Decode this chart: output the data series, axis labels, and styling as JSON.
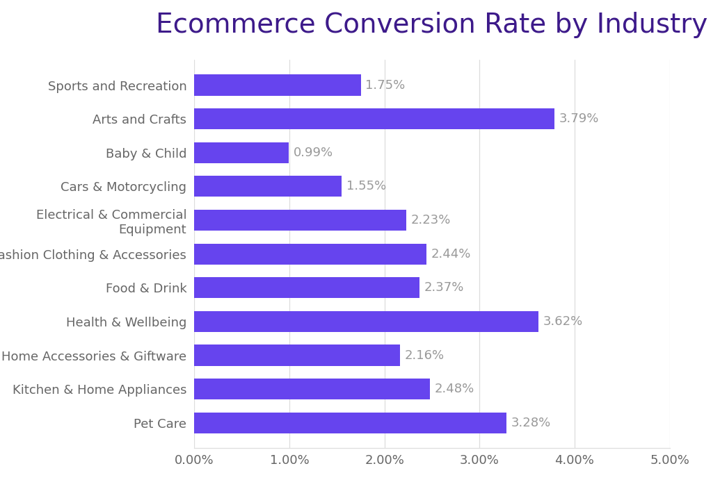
{
  "title": "Ecommerce Conversion Rate by Industry",
  "title_color": "#3d1a8a",
  "title_fontsize": 28,
  "categories": [
    "Sports and Recreation",
    "Arts and Crafts",
    "Baby & Child",
    "Cars & Motorcycling",
    "Electrical & Commercial\nEquipment",
    "Fashion Clothing & Accessories",
    "Food & Drink",
    "Health & Wellbeing",
    "Home Accessories & Giftware",
    "Kitchen & Home Appliances",
    "Pet Care"
  ],
  "values": [
    1.75,
    3.79,
    0.99,
    1.55,
    2.23,
    2.44,
    2.37,
    3.62,
    2.16,
    2.48,
    3.28
  ],
  "bar_color": "#6644ee",
  "label_color": "#999999",
  "label_fontsize": 13,
  "tick_label_fontsize": 13,
  "ytick_label_color": "#666666",
  "xtick_label_color": "#666666",
  "xlim": [
    0,
    5.0
  ],
  "xticks": [
    0,
    1.0,
    2.0,
    3.0,
    4.0,
    5.0
  ],
  "xtick_labels": [
    "0.00%",
    "1.00%",
    "2.00%",
    "3.00%",
    "4.00%",
    "5.00%"
  ],
  "background_color": "#ffffff",
  "grid_color": "#dddddd",
  "bar_height": 0.62
}
